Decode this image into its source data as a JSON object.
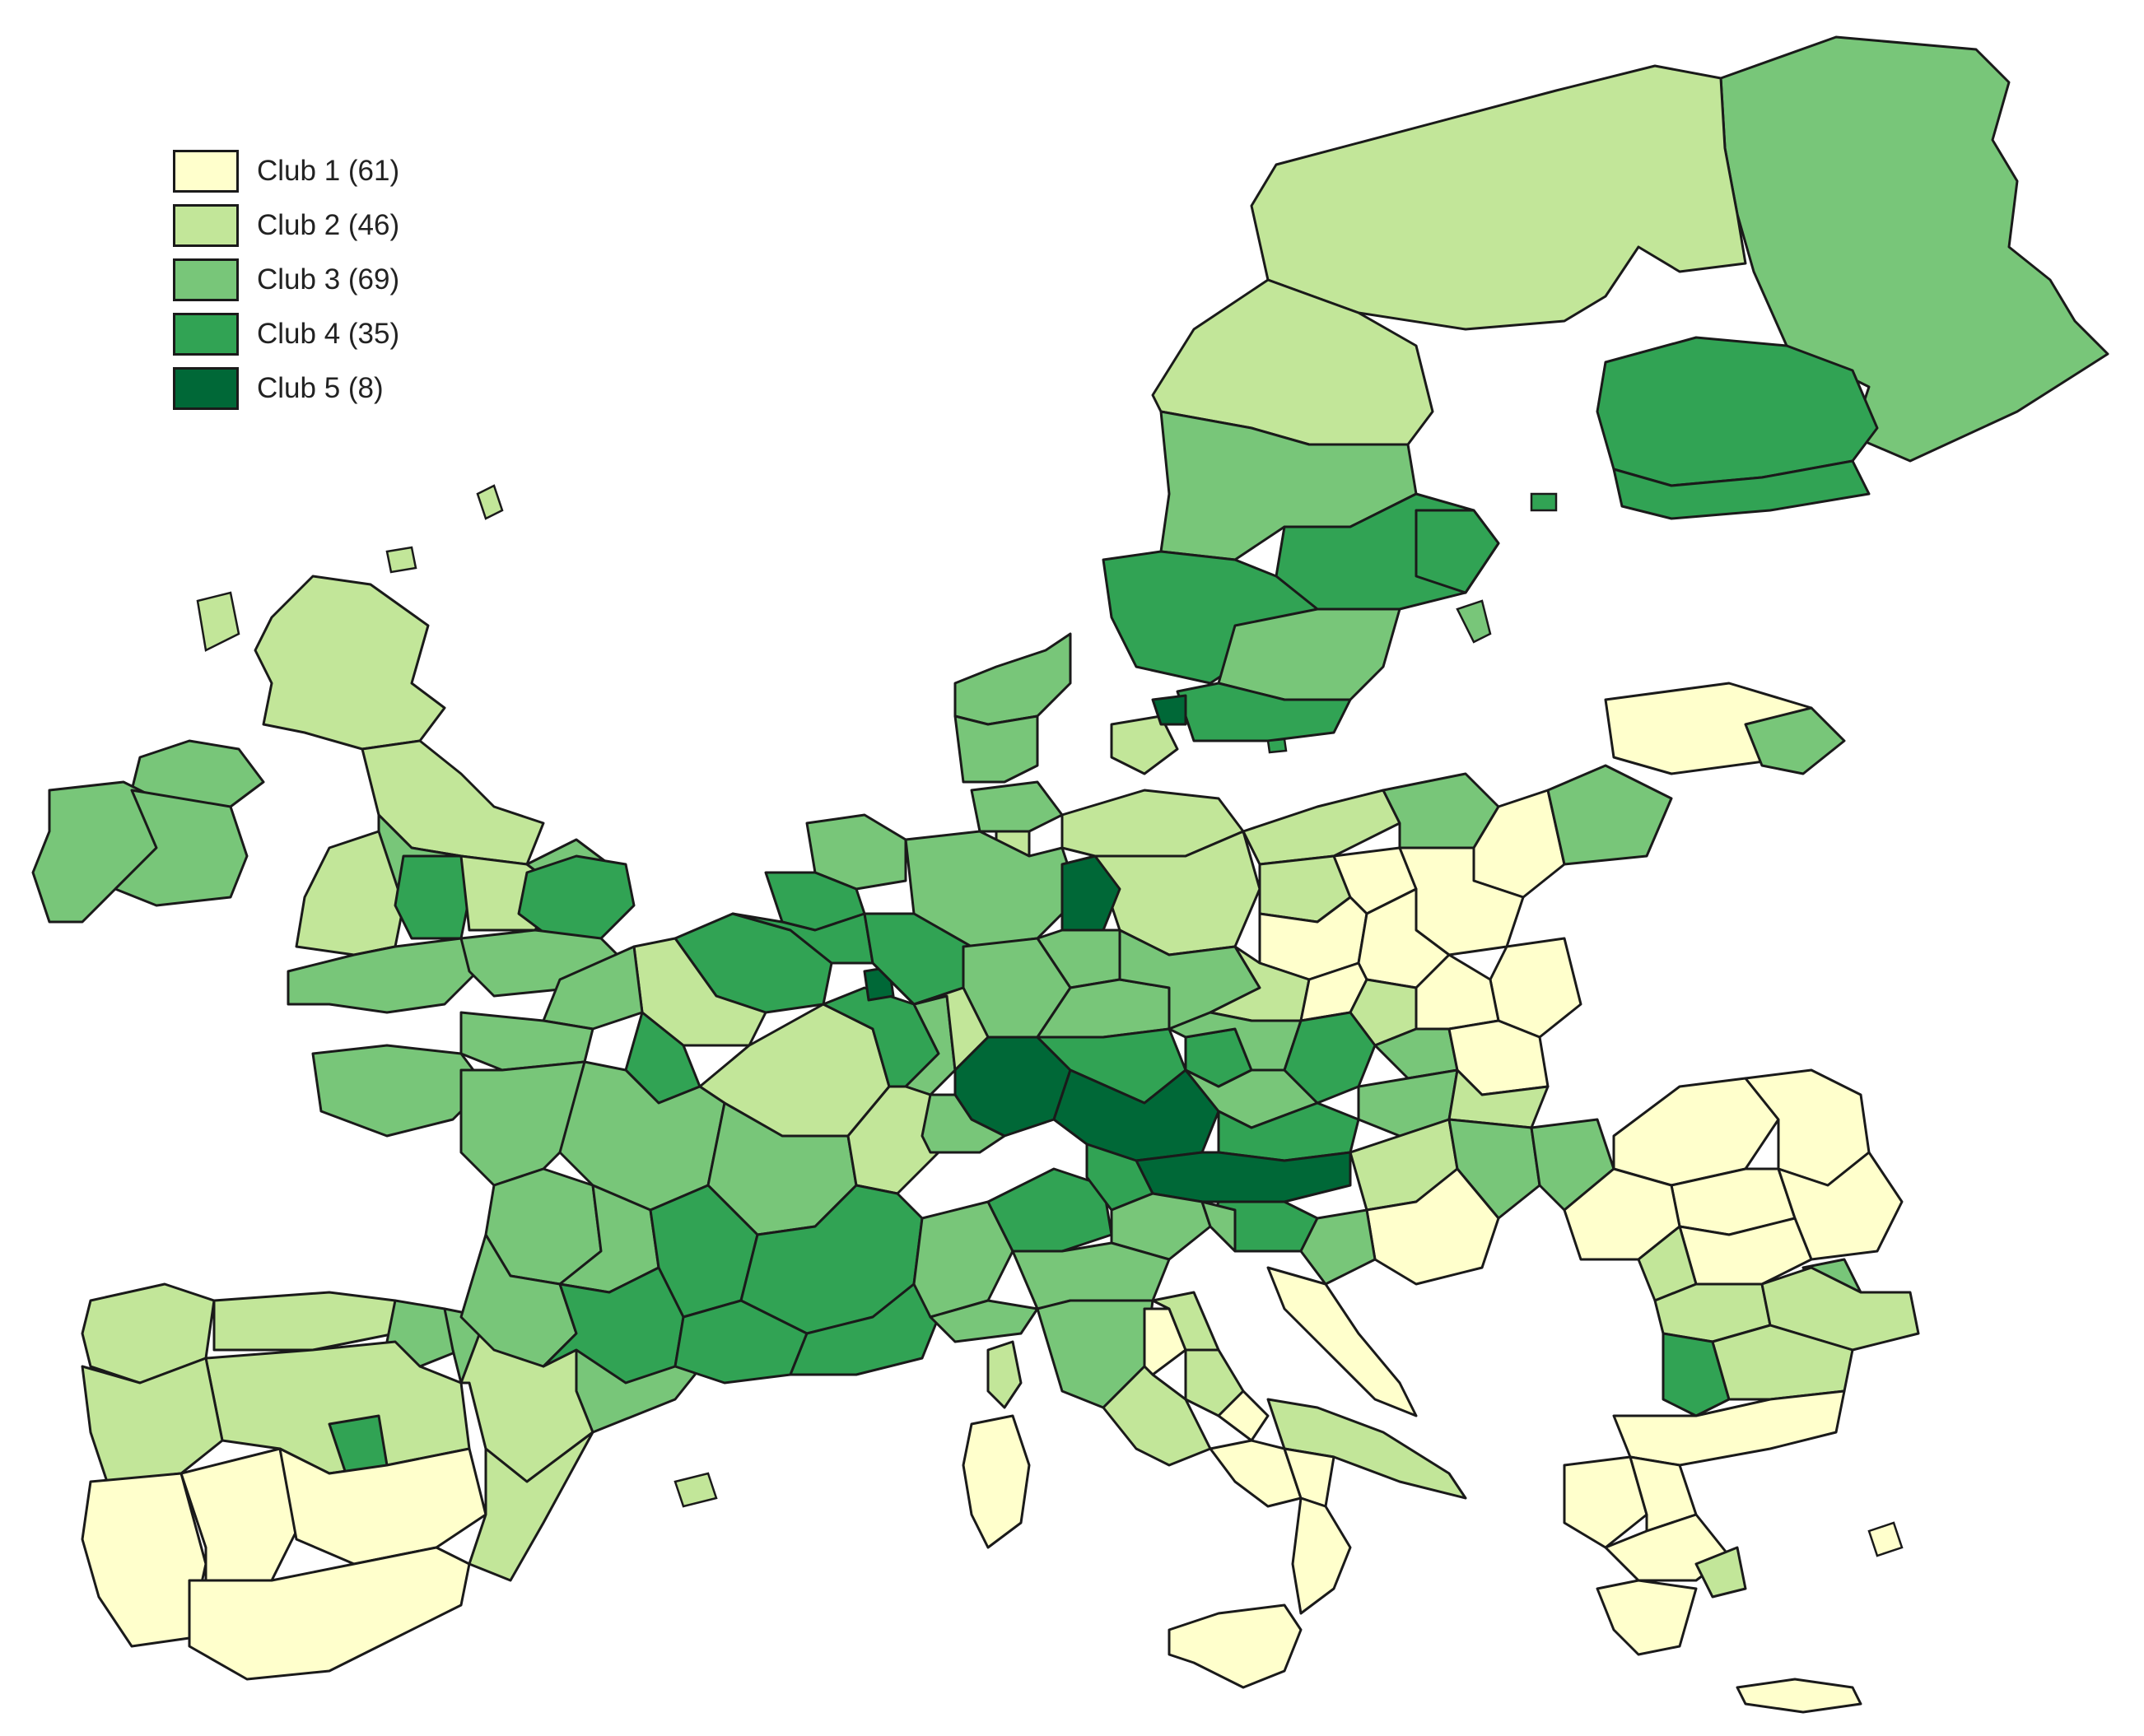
{
  "legend": {
    "items": [
      {
        "label": "Club 1 (61)",
        "color": "#ffffcc"
      },
      {
        "label": "Club 2 (46)",
        "color": "#c2e699"
      },
      {
        "label": "Club 3 (69)",
        "color": "#78c679"
      },
      {
        "label": "Club 4 (35)",
        "color": "#31a354"
      },
      {
        "label": "Club 5 (8)",
        "color": "#006837"
      }
    ]
  },
  "colors": {
    "border": "#1a1a1a",
    "background": "#ffffff"
  }
}
